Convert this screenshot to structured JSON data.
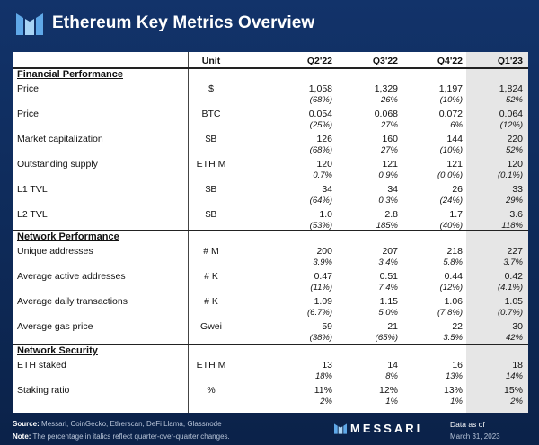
{
  "title": "Ethereum Key Metrics Overview",
  "columns": {
    "unit": "Unit",
    "q1": "Q2'22",
    "q2": "Q3'22",
    "q3": "Q4'22",
    "q4": "Q1'23"
  },
  "sections": {
    "financial": "Financial Performance",
    "network": "Network Performance",
    "security": "Network Security"
  },
  "rows": [
    {
      "label": "Price",
      "unit": "$",
      "v": [
        "1,058",
        "1,329",
        "1,197",
        "1,824"
      ],
      "p": [
        "(68%)",
        "26%",
        "(10%)",
        "52%"
      ]
    },
    {
      "label": "Price",
      "unit": "BTC",
      "v": [
        "0.054",
        "0.068",
        "0.072",
        "0.064"
      ],
      "p": [
        "(25%)",
        "27%",
        "6%",
        "(12%)"
      ]
    },
    {
      "label": "Market capitalization",
      "unit": "$B",
      "v": [
        "126",
        "160",
        "144",
        "220"
      ],
      "p": [
        "(68%)",
        "27%",
        "(10%)",
        "52%"
      ]
    },
    {
      "label": "Outstanding supply",
      "unit": "ETH M",
      "v": [
        "120",
        "121",
        "121",
        "120"
      ],
      "p": [
        "0.7%",
        "0.9%",
        "(0.0%)",
        "(0.1%)"
      ]
    },
    {
      "label": "L1 TVL",
      "unit": "$B",
      "v": [
        "34",
        "34",
        "26",
        "33"
      ],
      "p": [
        "(64%)",
        "0.3%",
        "(24%)",
        "29%"
      ]
    },
    {
      "label": "L2 TVL",
      "unit": "$B",
      "v": [
        "1.0",
        "2.8",
        "1.7",
        "3.6"
      ],
      "p": [
        "(53%)",
        "185%",
        "(40%)",
        "118%"
      ]
    },
    {
      "label": "Unique addresses",
      "unit": "# M",
      "v": [
        "200",
        "207",
        "218",
        "227"
      ],
      "p": [
        "3.9%",
        "3.4%",
        "5.8%",
        "3.7%"
      ]
    },
    {
      "label": "Average active addresses",
      "unit": "# K",
      "v": [
        "0.47",
        "0.51",
        "0.44",
        "0.42"
      ],
      "p": [
        "(11%)",
        "7.4%",
        "(12%)",
        "(4.1%)"
      ]
    },
    {
      "label": "Average daily transactions",
      "unit": "# K",
      "v": [
        "1.09",
        "1.15",
        "1.06",
        "1.05"
      ],
      "p": [
        "(6.7%)",
        "5.0%",
        "(7.8%)",
        "(0.7%)"
      ]
    },
    {
      "label": "Average gas price",
      "unit": "Gwei",
      "v": [
        "59",
        "21",
        "22",
        "30"
      ],
      "p": [
        "(38%)",
        "(65%)",
        "3.5%",
        "42%"
      ]
    },
    {
      "label": "ETH staked",
      "unit": "ETH M",
      "v": [
        "13",
        "14",
        "16",
        "18"
      ],
      "p": [
        "18%",
        "8%",
        "13%",
        "14%"
      ]
    },
    {
      "label": "Staking ratio",
      "unit": "%",
      "v": [
        "11%",
        "12%",
        "13%",
        "15%"
      ],
      "p": [
        "2%",
        "1%",
        "1%",
        "2%"
      ]
    }
  ],
  "footer": {
    "source_label": "Source:",
    "source_text": "Messari, CoinGecko, Etherscan, DeFi Llama, Glassnode",
    "note_label": "Note:",
    "note_text": "The percentage in italics reflect quarter-over-quarter changes.",
    "brand": "MESSARI",
    "data_as_of": "Data as of",
    "date": "March 31, 2023"
  },
  "icons": {
    "logo": "messari-logo-icon"
  },
  "colors": {
    "background": "#0f2a52",
    "panel": "#ffffff",
    "q1_shade": "#e6e6e6"
  }
}
